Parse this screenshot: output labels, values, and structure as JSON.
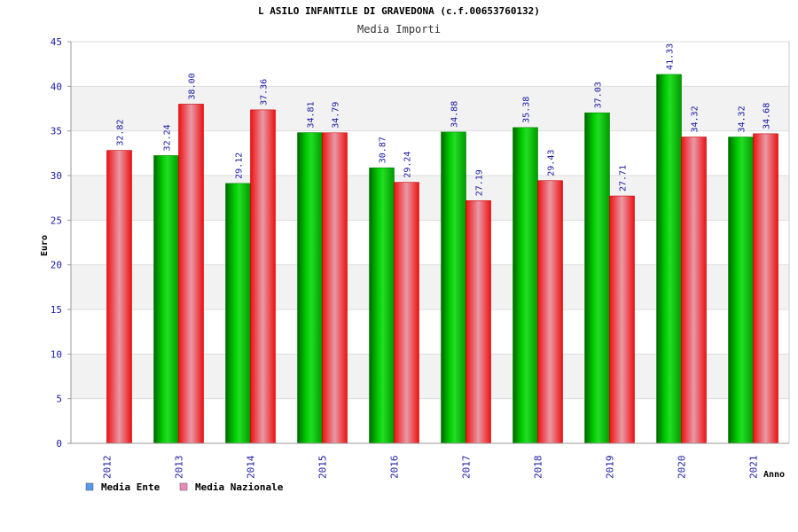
{
  "chart_data": {
    "type": "bar",
    "title": "L ASILO INFANTILE DI GRAVEDONA (c.f.00653760132)",
    "subtitle": "Media Importi",
    "xlabel": "Anno",
    "ylabel": "Euro",
    "ylim": [
      0,
      45
    ],
    "ytick_step": 5,
    "grid": true,
    "legend_position": "bottom-left",
    "categories": [
      "2012",
      "2013",
      "2014",
      "2015",
      "2016",
      "2017",
      "2018",
      "2019",
      "2020",
      "2021"
    ],
    "series": [
      {
        "name": "Media Ente",
        "color": "#00aa00",
        "legend_color": "#5599ee",
        "values": [
          null,
          32.24,
          29.12,
          34.81,
          30.87,
          34.88,
          35.38,
          37.03,
          41.33,
          34.32
        ],
        "labels": [
          "",
          "32.24",
          "29.12",
          "34.81",
          "30.87",
          "34.88",
          "35.38",
          "37.03",
          "41.33",
          "34.32"
        ]
      },
      {
        "name": "Media Nazionale",
        "color": "#ee1111",
        "legend_color": "#ee88bb",
        "values": [
          32.82,
          38.0,
          37.36,
          34.79,
          29.24,
          27.19,
          29.43,
          27.71,
          34.32,
          34.68
        ],
        "labels": [
          "32.82",
          "38.00",
          "37.36",
          "34.79",
          "29.24",
          "27.19",
          "29.43",
          "27.71",
          "34.32",
          "34.68"
        ]
      }
    ]
  }
}
